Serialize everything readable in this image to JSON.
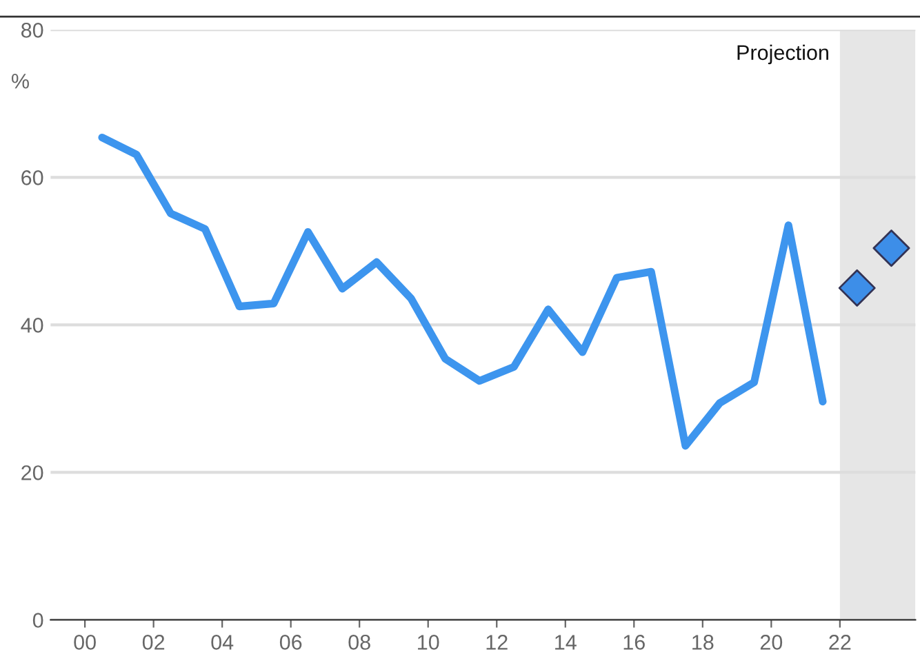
{
  "chart_data": {
    "type": "line",
    "annotations": [
      "%"
    ],
    "series": [
      {
        "color": "#3d95ee",
        "x": [
          0.5,
          1.5,
          2.5,
          3.5,
          4.5,
          5.5,
          6.5,
          7.5,
          8.5,
          9.5,
          10.5,
          11.5,
          12.5,
          13.5,
          14.5,
          15.5,
          16.5,
          17.5,
          18.5,
          19.5,
          20.5,
          21.5
        ],
        "values": [
          65.4,
          63.1,
          55.1,
          53,
          42.5,
          42.9,
          52.6,
          44.9,
          48.5,
          43.6,
          35.4,
          32.4,
          34.3,
          42.1,
          36.3,
          46.4,
          47.2,
          23.6,
          29.4,
          32.2,
          53.5,
          29.6
        ]
      },
      {
        "type": "scatter",
        "color": "#3d8ee8",
        "marker": "diamond",
        "x": [
          22.5,
          23.5
        ],
        "values": [
          45,
          50.4
        ]
      }
    ],
    "xlim": [
      -1,
      24.2
    ],
    "xticks": [
      {
        "value": 0,
        "label": "00"
      },
      {
        "value": 2,
        "label": "02"
      },
      {
        "value": 4,
        "label": "04"
      },
      {
        "value": 6,
        "label": "06"
      },
      {
        "value": 8,
        "label": "08"
      },
      {
        "value": 10,
        "label": "10"
      },
      {
        "value": 12,
        "label": "12"
      },
      {
        "value": 14,
        "label": "14"
      },
      {
        "value": 16,
        "label": "16"
      },
      {
        "value": 18,
        "label": "18"
      },
      {
        "value": 20,
        "label": "20"
      },
      {
        "value": 22,
        "label": "22"
      }
    ],
    "ylim": [
      0,
      80
    ],
    "yticks": [
      0,
      20,
      40,
      60,
      80
    ],
    "grid": "y",
    "bands": [
      {
        "axis": "x",
        "from": 22,
        "to": 24.2,
        "label": "Projection",
        "color": "#e6e6e6"
      }
    ]
  }
}
